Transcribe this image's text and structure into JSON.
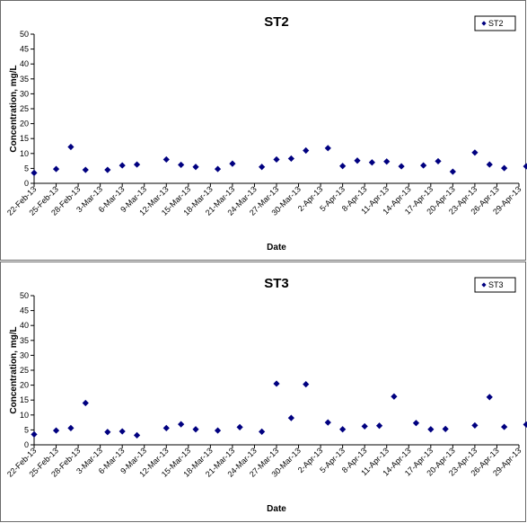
{
  "chart_data": [
    {
      "type": "scatter",
      "title": "ST2",
      "xlabel": "Date",
      "ylabel": "Concentration, mg/L",
      "ylim": [
        0,
        50
      ],
      "y_ticks": [
        0,
        5,
        10,
        15,
        20,
        25,
        30,
        35,
        40,
        45,
        50
      ],
      "x_tick_labels": [
        "22-Feb-13",
        "25-Feb-13",
        "28-Feb-13",
        "3-Mar-13",
        "6-Mar-13",
        "9-Mar-13",
        "12-Mar-13",
        "15-Mar-13",
        "18-Mar-13",
        "21-Mar-13",
        "24-Mar-13",
        "27-Mar-13",
        "30-Mar-13",
        "2-Apr-13",
        "5-Apr-13",
        "8-Apr-13",
        "11-Apr-13",
        "14-Apr-13",
        "17-Apr-13",
        "20-Apr-13",
        "23-Apr-13",
        "26-Apr-13",
        "29-Apr-13"
      ],
      "x_range": [
        "22-Feb-13",
        "29-Apr-13"
      ],
      "grid": false,
      "legend": "top-right",
      "marker_color": "#000080",
      "series": [
        {
          "name": "ST2",
          "x": [
            "22-Feb-13",
            "25-Feb-13",
            "27-Feb-13",
            "1-Mar-13",
            "4-Mar-13",
            "6-Mar-13",
            "8-Mar-13",
            "12-Mar-13",
            "14-Mar-13",
            "16-Mar-13",
            "19-Mar-13",
            "21-Mar-13",
            "25-Mar-13",
            "27-Mar-13",
            "29-Mar-13",
            "31-Mar-13",
            "3-Apr-13",
            "5-Apr-13",
            "7-Apr-13",
            "9-Apr-13",
            "11-Apr-13",
            "13-Apr-13",
            "16-Apr-13",
            "18-Apr-13",
            "20-Apr-13",
            "23-Apr-13",
            "25-Apr-13",
            "27-Apr-13",
            "30-Apr-13"
          ],
          "y": [
            3.5,
            4.8,
            12.2,
            4.5,
            4.5,
            6.0,
            6.3,
            8.0,
            6.2,
            5.5,
            4.8,
            6.6,
            5.5,
            8.0,
            8.3,
            11.0,
            11.8,
            5.8,
            7.6,
            7.0,
            7.3,
            5.7,
            6.0,
            7.4,
            3.9,
            10.3,
            6.3,
            5.1,
            5.7
          ]
        }
      ]
    },
    {
      "type": "scatter",
      "title": "ST3",
      "xlabel": "Date",
      "ylabel": "Concentration, mg/L",
      "ylim": [
        0,
        50
      ],
      "y_ticks": [
        0,
        5,
        10,
        15,
        20,
        25,
        30,
        35,
        40,
        45,
        50
      ],
      "x_tick_labels": [
        "22-Feb-13",
        "25-Feb-13",
        "28-Feb-13",
        "3-Mar-13",
        "6-Mar-13",
        "9-Mar-13",
        "12-Mar-13",
        "15-Mar-13",
        "18-Mar-13",
        "21-Mar-13",
        "24-Mar-13",
        "27-Mar-13",
        "30-Mar-13",
        "2-Apr-13",
        "5-Apr-13",
        "8-Apr-13",
        "11-Apr-13",
        "14-Apr-13",
        "17-Apr-13",
        "20-Apr-13",
        "23-Apr-13",
        "26-Apr-13",
        "29-Apr-13"
      ],
      "x_range": [
        "22-Feb-13",
        "29-Apr-13"
      ],
      "grid": false,
      "legend": "top-right",
      "marker_color": "#000080",
      "series": [
        {
          "name": "ST3",
          "x": [
            "22-Feb-13",
            "25-Feb-13",
            "27-Feb-13",
            "1-Mar-13",
            "4-Mar-13",
            "6-Mar-13",
            "8-Mar-13",
            "12-Mar-13",
            "14-Mar-13",
            "16-Mar-13",
            "19-Mar-13",
            "22-Mar-13",
            "25-Mar-13",
            "27-Mar-13",
            "29-Mar-13",
            "31-Mar-13",
            "3-Apr-13",
            "5-Apr-13",
            "8-Apr-13",
            "10-Apr-13",
            "12-Apr-13",
            "15-Apr-13",
            "17-Apr-13",
            "19-Apr-13",
            "23-Apr-13",
            "25-Apr-13",
            "27-Apr-13",
            "30-Apr-13"
          ],
          "y": [
            3.5,
            4.8,
            5.6,
            14.0,
            4.3,
            4.5,
            3.2,
            5.6,
            6.9,
            5.2,
            4.8,
            5.9,
            4.4,
            20.5,
            9.0,
            20.3,
            7.5,
            5.2,
            6.2,
            6.4,
            16.2,
            7.3,
            5.2,
            5.3,
            6.5,
            16.0,
            6.0,
            6.8
          ]
        }
      ]
    }
  ]
}
